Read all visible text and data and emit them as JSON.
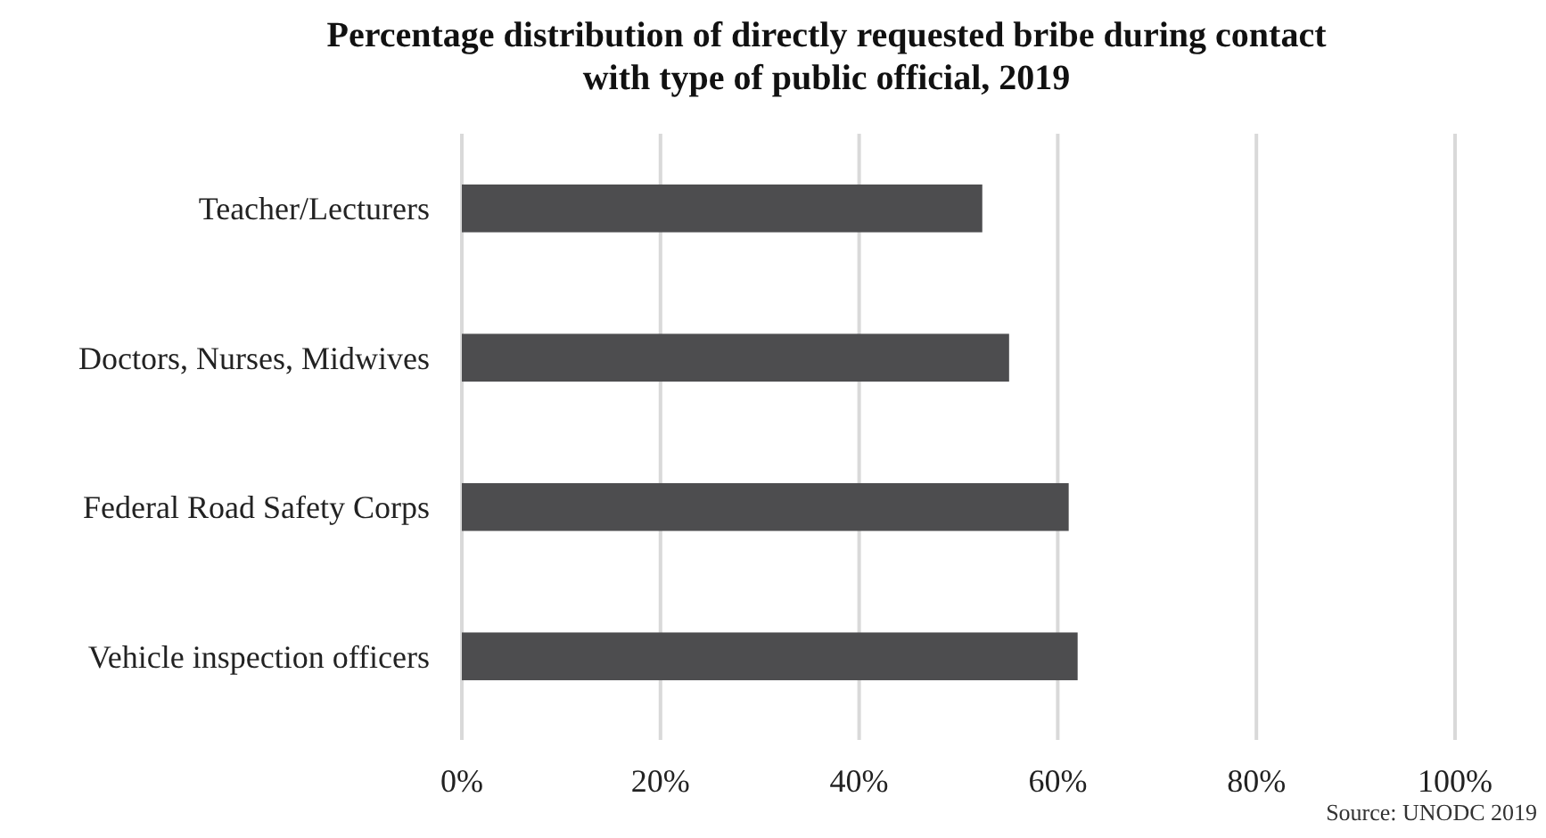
{
  "chart_data": {
    "type": "bar",
    "orientation": "horizontal",
    "title": "Percentage distribution of directly requested bribe during contact with type of public official, 2019",
    "categories": [
      "Teacher/Lecturers",
      "Doctors, Nurses, Midwives",
      "Federal Road Safety Corps",
      "Vehicle inspection officers"
    ],
    "values": [
      52.4,
      55.1,
      61.1,
      62.0
    ],
    "color": "#4d4d4f",
    "xlim": [
      0,
      100
    ],
    "xticks": [
      {
        "value": 0,
        "label": "0%"
      },
      {
        "value": 20,
        "label": "20%"
      },
      {
        "value": 40,
        "label": "40%"
      },
      {
        "value": 60,
        "label": "60%"
      },
      {
        "value": 80,
        "label": "80%"
      },
      {
        "value": 100,
        "label": "100%"
      }
    ],
    "grid": "x",
    "annotations": [
      "Source: UNODC 2019"
    ]
  }
}
